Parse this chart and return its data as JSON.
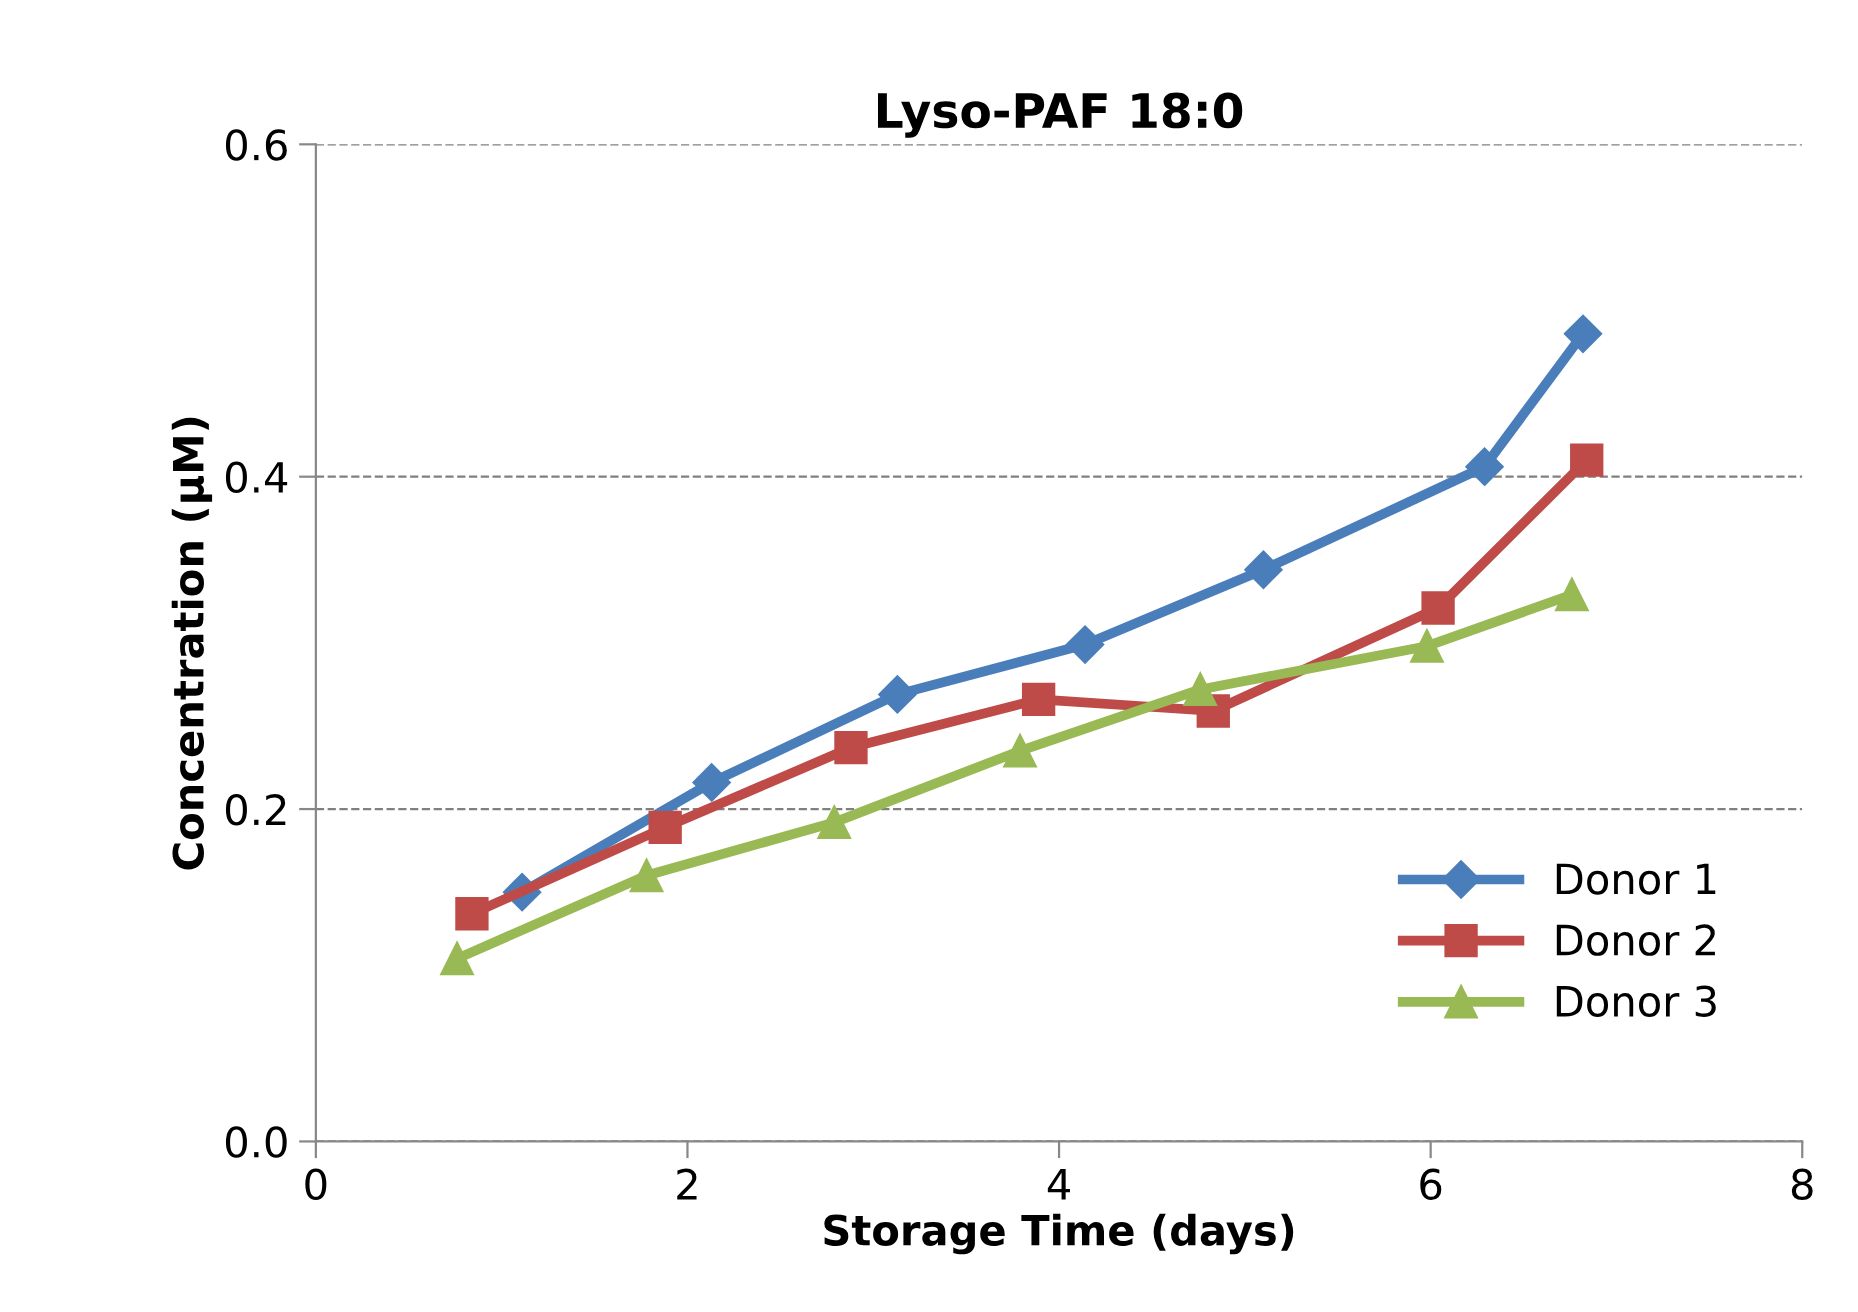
{
  "chart_data": {
    "type": "line",
    "title": "Lyso-PAF 18:0",
    "xlabel": "Storage Time (days)",
    "ylabel": "Concentration (µM)",
    "xlim": [
      0,
      8
    ],
    "xticks": [
      0,
      2,
      4,
      6,
      8
    ],
    "ylim": [
      0,
      0.6
    ],
    "yticks": [
      {
        "value": 0,
        "label": "0.0"
      },
      0.2,
      0.4,
      0.6
    ],
    "grid": "y",
    "legend": "bottom right",
    "line_style": "solid",
    "series": [
      {
        "name": "Donor 1",
        "color": "#4a7ebb",
        "marker": "diamond",
        "x": [
          1.11,
          2.13,
          3.13,
          4.14,
          5.1,
          6.29,
          6.82
        ],
        "values": [
          0.15,
          0.216,
          0.269,
          0.299,
          0.344,
          0.406,
          0.486
        ]
      },
      {
        "name": "Donor 2",
        "color": "#be4b48",
        "marker": "square",
        "x": [
          0.84,
          1.88,
          2.88,
          3.89,
          4.83,
          6.04,
          6.84
        ],
        "values": [
          0.137,
          0.189,
          0.237,
          0.266,
          0.259,
          0.321,
          0.41
        ]
      },
      {
        "name": "Donor 3",
        "color": "#98b954",
        "marker": "triangle",
        "x": [
          0.76,
          1.78,
          2.79,
          3.79,
          4.76,
          5.98,
          6.76
        ],
        "values": [
          0.11,
          0.16,
          0.192,
          0.235,
          0.272,
          0.298,
          0.329
        ]
      }
    ]
  }
}
